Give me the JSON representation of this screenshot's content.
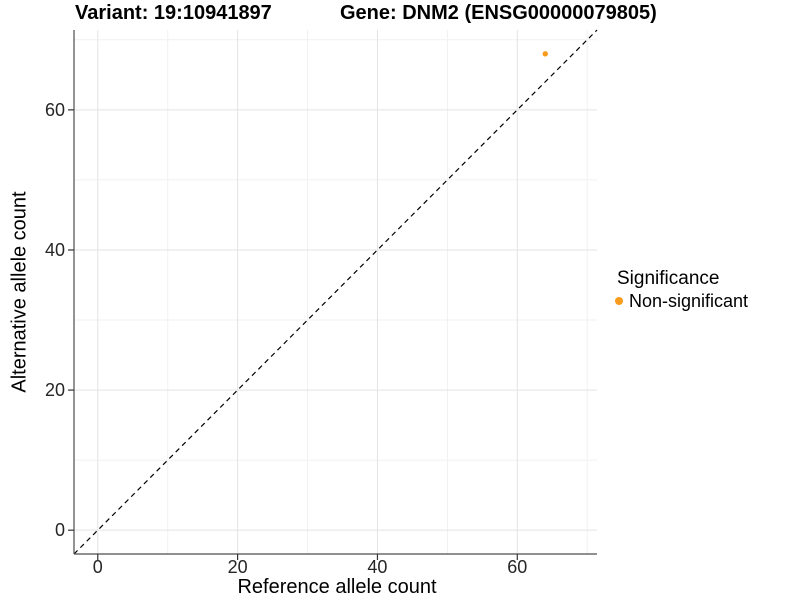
{
  "title": {
    "variant": "Variant: 19:10941897",
    "gene": "Gene: DNM2 (ENSG00000079805)"
  },
  "legend": {
    "title": "Significance",
    "items": [
      {
        "label": "Non-significant",
        "color": "#F89C1E",
        "marker": "dot-icon"
      }
    ]
  },
  "chart_data": {
    "type": "scatter",
    "title": "Variant: 19:10941897 | Gene: DNM2 (ENSG00000079805)",
    "xlabel": "Reference allele count",
    "ylabel": "Alternative allele count",
    "xlim": [
      -3.4,
      71.4
    ],
    "ylim": [
      -3.4,
      71.4
    ],
    "x_ticks": [
      0,
      20,
      40,
      60
    ],
    "y_ticks": [
      0,
      20,
      40,
      60
    ],
    "x_minor_ticks": [
      10,
      30,
      50,
      70
    ],
    "y_minor_ticks": [
      10,
      30,
      50,
      70
    ],
    "grid": true,
    "legend_position": "right",
    "series": [
      {
        "name": "Non-significant",
        "color": "#F89C1E",
        "points": [
          {
            "x": 64,
            "y": 68
          }
        ]
      }
    ],
    "reference_line": {
      "style": "dashed",
      "color": "#000000",
      "equation": "y = x",
      "from": [
        -3.4,
        -3.4
      ],
      "to": [
        71.4,
        71.4
      ]
    },
    "colors": {
      "major_grid": "#e3e3e3",
      "minor_grid": "#f1f1f1",
      "axis_line": "#4d4d4d",
      "tick_mark": "#333333",
      "tick_text": "#262626"
    }
  }
}
